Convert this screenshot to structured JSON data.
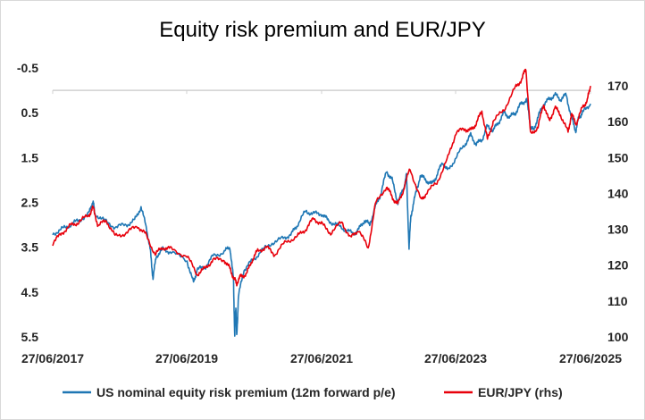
{
  "chart_data": {
    "type": "line",
    "title": "Equity risk premium and EUR/JPY",
    "xlabel": "",
    "ylabel": "",
    "x_ticks": [
      "27/06/2017",
      "27/06/2019",
      "27/06/2021",
      "27/06/2023",
      "27/06/2025"
    ],
    "xlim": [
      "2017-06-27",
      "2025-06-27"
    ],
    "y_left": {
      "inverted": true,
      "ylim": [
        -0.5,
        5.5
      ],
      "ticks": [
        "-0.5",
        "0.5",
        "1.5",
        "2.5",
        "3.5",
        "4.5",
        "5.5"
      ]
    },
    "y_right": {
      "ylim": [
        100,
        175
      ],
      "ticks": [
        "100",
        "110",
        "120",
        "130",
        "140",
        "150",
        "160",
        "170"
      ]
    },
    "legend_position": "bottom",
    "grid": false,
    "series": [
      {
        "name": "US nominal equity risk premium (12m forward p/e)",
        "axis": "left",
        "color": "#1f77b4",
        "points": [
          [
            "2017-06-27",
            3.2
          ],
          [
            "2017-08-15",
            3.1
          ],
          [
            "2017-10-01",
            3.0
          ],
          [
            "2017-11-15",
            2.9
          ],
          [
            "2018-01-10",
            2.75
          ],
          [
            "2018-02-01",
            2.45
          ],
          [
            "2018-02-10",
            2.75
          ],
          [
            "2018-04-01",
            2.9
          ],
          [
            "2018-06-01",
            3.05
          ],
          [
            "2018-08-01",
            3.0
          ],
          [
            "2018-09-15",
            2.9
          ],
          [
            "2018-10-20",
            2.6
          ],
          [
            "2018-11-20",
            3.1
          ],
          [
            "2018-12-10",
            3.6
          ],
          [
            "2018-12-24",
            4.2
          ],
          [
            "2019-01-10",
            3.7
          ],
          [
            "2019-02-15",
            3.55
          ],
          [
            "2019-04-01",
            3.6
          ],
          [
            "2019-06-27",
            3.8
          ],
          [
            "2019-08-01",
            4.3
          ],
          [
            "2019-08-20",
            4.0
          ],
          [
            "2019-10-01",
            3.95
          ],
          [
            "2019-11-15",
            3.7
          ],
          [
            "2020-01-15",
            3.6
          ],
          [
            "2020-02-15",
            3.5
          ],
          [
            "2020-03-05",
            4.2
          ],
          [
            "2020-03-12",
            5.5
          ],
          [
            "2020-03-18",
            4.8
          ],
          [
            "2020-03-23",
            5.5
          ],
          [
            "2020-04-01",
            4.6
          ],
          [
            "2020-05-01",
            4.0
          ],
          [
            "2020-06-15",
            3.8
          ],
          [
            "2020-08-01",
            3.6
          ],
          [
            "2020-10-01",
            3.4
          ],
          [
            "2020-12-01",
            3.3
          ],
          [
            "2021-01-15",
            3.2
          ],
          [
            "2021-02-15",
            3.0
          ],
          [
            "2021-04-01",
            2.7
          ],
          [
            "2021-05-15",
            2.75
          ],
          [
            "2021-06-27",
            2.75
          ],
          [
            "2021-08-01",
            2.9
          ],
          [
            "2021-09-15",
            3.0
          ],
          [
            "2021-11-01",
            3.1
          ],
          [
            "2021-12-15",
            3.2
          ],
          [
            "2022-01-15",
            3.1
          ],
          [
            "2022-02-15",
            2.9
          ],
          [
            "2022-03-15",
            3.0
          ],
          [
            "2022-04-15",
            2.6
          ],
          [
            "2022-05-15",
            2.3
          ],
          [
            "2022-06-15",
            1.8
          ],
          [
            "2022-07-15",
            2.0
          ],
          [
            "2022-08-15",
            2.5
          ],
          [
            "2022-09-15",
            2.2
          ],
          [
            "2022-10-01",
            1.9
          ],
          [
            "2022-10-15",
            3.5
          ],
          [
            "2022-10-25",
            2.8
          ],
          [
            "2022-11-15",
            2.4
          ],
          [
            "2022-12-15",
            1.9
          ],
          [
            "2023-01-15",
            2.0
          ],
          [
            "2023-02-15",
            2.1
          ],
          [
            "2023-03-15",
            1.9
          ],
          [
            "2023-04-15",
            1.6
          ],
          [
            "2023-05-15",
            1.8
          ],
          [
            "2023-06-27",
            1.5
          ],
          [
            "2023-08-15",
            1.2
          ],
          [
            "2023-09-15",
            1.0
          ],
          [
            "2023-10-15",
            1.2
          ],
          [
            "2023-11-15",
            1.1
          ],
          [
            "2023-12-15",
            0.8
          ],
          [
            "2024-01-15",
            0.9
          ],
          [
            "2024-02-15",
            0.7
          ],
          [
            "2024-03-15",
            0.5
          ],
          [
            "2024-04-15",
            0.6
          ],
          [
            "2024-05-15",
            0.5
          ],
          [
            "2024-06-15",
            0.3
          ],
          [
            "2024-07-15",
            0.2
          ],
          [
            "2024-08-05",
            0.8
          ],
          [
            "2024-08-20",
            0.9
          ],
          [
            "2024-09-15",
            0.6
          ],
          [
            "2024-10-15",
            0.3
          ],
          [
            "2024-11-15",
            0.2
          ],
          [
            "2024-12-15",
            0.1
          ],
          [
            "2025-01-15",
            0.2
          ],
          [
            "2025-02-15",
            0.1
          ],
          [
            "2025-03-15",
            0.6
          ],
          [
            "2025-04-08",
            0.9
          ],
          [
            "2025-04-25",
            0.6
          ],
          [
            "2025-05-15",
            0.5
          ],
          [
            "2025-06-27",
            0.3
          ]
        ]
      },
      {
        "name": "EUR/JPY (rhs)",
        "axis": "right",
        "color": "#e8000b",
        "points": [
          [
            "2017-06-27",
            126.0
          ],
          [
            "2017-08-15",
            129.0
          ],
          [
            "2017-10-01",
            131.0
          ],
          [
            "2017-11-15",
            132.0
          ],
          [
            "2018-01-10",
            134.0
          ],
          [
            "2018-02-01",
            136.0
          ],
          [
            "2018-03-01",
            131.0
          ],
          [
            "2018-04-15",
            132.5
          ],
          [
            "2018-06-01",
            128.0
          ],
          [
            "2018-08-01",
            129.0
          ],
          [
            "2018-10-01",
            131.0
          ],
          [
            "2018-11-15",
            128.5
          ],
          [
            "2019-01-05",
            123.0
          ],
          [
            "2019-02-15",
            125.0
          ],
          [
            "2019-04-01",
            124.5
          ],
          [
            "2019-06-27",
            122.5
          ],
          [
            "2019-08-20",
            117.5
          ],
          [
            "2019-10-01",
            119.0
          ],
          [
            "2019-11-15",
            121.5
          ],
          [
            "2020-01-15",
            121.5
          ],
          [
            "2020-02-15",
            119.0
          ],
          [
            "2020-03-10",
            116.0
          ],
          [
            "2020-03-23",
            115.0
          ],
          [
            "2020-04-15",
            117.0
          ],
          [
            "2020-05-15",
            117.5
          ],
          [
            "2020-06-15",
            121.5
          ],
          [
            "2020-07-15",
            124.0
          ],
          [
            "2020-09-01",
            125.0
          ],
          [
            "2020-10-15",
            123.0
          ],
          [
            "2020-12-15",
            126.5
          ],
          [
            "2021-02-15",
            128.0
          ],
          [
            "2021-04-01",
            130.0
          ],
          [
            "2021-05-15",
            133.0
          ],
          [
            "2021-06-27",
            131.5
          ],
          [
            "2021-08-15",
            129.0
          ],
          [
            "2021-10-15",
            132.0
          ],
          [
            "2021-12-01",
            127.5
          ],
          [
            "2022-01-15",
            130.0
          ],
          [
            "2022-03-07",
            124.5
          ],
          [
            "2022-04-15",
            137.0
          ],
          [
            "2022-06-15",
            142.0
          ],
          [
            "2022-07-15",
            139.0
          ],
          [
            "2022-08-15",
            137.0
          ],
          [
            "2022-09-15",
            141.0
          ],
          [
            "2022-10-20",
            147.0
          ],
          [
            "2022-12-20",
            138.0
          ],
          [
            "2023-01-15",
            140.0
          ],
          [
            "2023-03-15",
            143.0
          ],
          [
            "2023-05-15",
            150.0
          ],
          [
            "2023-06-27",
            157.0
          ],
          [
            "2023-08-15",
            158.0
          ],
          [
            "2023-09-15",
            157.5
          ],
          [
            "2023-10-15",
            159.5
          ],
          [
            "2023-11-15",
            163.0
          ],
          [
            "2023-12-15",
            155.0
          ],
          [
            "2024-01-15",
            160.0
          ],
          [
            "2024-03-15",
            163.5
          ],
          [
            "2024-05-15",
            169.5
          ],
          [
            "2024-06-20",
            172.0
          ],
          [
            "2024-07-11",
            175.0
          ],
          [
            "2024-08-05",
            156.5
          ],
          [
            "2024-09-15",
            158.5
          ],
          [
            "2024-10-15",
            165.0
          ],
          [
            "2024-11-15",
            160.0
          ],
          [
            "2024-12-15",
            164.0
          ],
          [
            "2025-01-15",
            162.0
          ],
          [
            "2025-02-25",
            157.0
          ],
          [
            "2025-03-15",
            162.0
          ],
          [
            "2025-04-10",
            159.5
          ],
          [
            "2025-05-15",
            164.0
          ],
          [
            "2025-06-10",
            166.0
          ],
          [
            "2025-06-27",
            170.0
          ]
        ]
      }
    ]
  }
}
